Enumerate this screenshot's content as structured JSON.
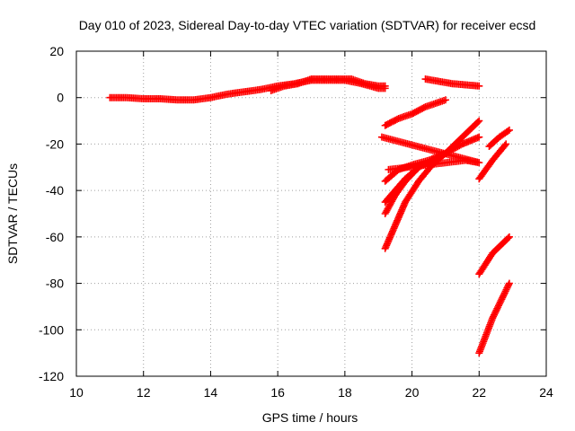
{
  "chart_data": {
    "type": "scatter",
    "title": "Day 010 of 2023, Sidereal Day-to-day VTEC variation (SDTVAR) for receiver ecsd",
    "xlabel": "GPS time / hours",
    "ylabel": "SDTVAR / TECUs",
    "xlim": [
      10,
      24
    ],
    "ylim": [
      -120,
      20
    ],
    "xticks": [
      10,
      12,
      14,
      16,
      18,
      20,
      22,
      24
    ],
    "yticks": [
      20,
      0,
      -20,
      -40,
      -60,
      -80,
      -100,
      -120
    ],
    "grid": true,
    "legend": "none",
    "marker": "plus",
    "color": "#ff0000",
    "series": [
      {
        "x": [
          11.0,
          11.5,
          12.0,
          12.5,
          13.0,
          13.5,
          14.0,
          14.5,
          15.0,
          15.5,
          16.0,
          16.5,
          17.0,
          17.5,
          18.0,
          18.5,
          19.0,
          19.2
        ],
        "y": [
          0,
          0,
          -0.5,
          -0.5,
          -1,
          -1,
          0,
          1.5,
          2.5,
          3.5,
          5,
          6,
          7.5,
          7.5,
          7.5,
          6,
          4,
          4
        ]
      },
      {
        "x": [
          15.8,
          16.2,
          16.6,
          17.0,
          17.4,
          17.8,
          18.2,
          18.6,
          19.0,
          19.2
        ],
        "y": [
          3,
          5,
          6,
          8,
          8,
          8,
          8,
          6,
          5,
          5
        ]
      },
      {
        "x": [
          20.4,
          20.8,
          21.2,
          21.6,
          22.0
        ],
        "y": [
          8,
          7,
          6,
          5.5,
          5
        ]
      },
      {
        "x": [
          19.2,
          19.6,
          20.0,
          20.4,
          20.8,
          21.0
        ],
        "y": [
          -12,
          -9,
          -7,
          -4,
          -2,
          -1
        ]
      },
      {
        "x": [
          19.2,
          19.6,
          20.0,
          20.5,
          21.0,
          21.5,
          22.0
        ],
        "y": [
          -36,
          -31,
          -29,
          -27,
          -24,
          -20,
          -17
        ]
      },
      {
        "x": [
          19.2,
          19.5,
          19.8,
          20.2,
          20.6,
          21.0,
          21.5,
          22.0
        ],
        "y": [
          -50,
          -42,
          -36,
          -30,
          -27,
          -24,
          -17,
          -10
        ]
      },
      {
        "x": [
          19.2,
          19.5,
          19.8,
          20.2,
          20.6,
          21.0
        ],
        "y": [
          -65,
          -55,
          -45,
          -36,
          -29,
          -24
        ]
      },
      {
        "x": [
          19.2,
          19.5,
          19.8,
          20.2
        ],
        "y": [
          -45,
          -40,
          -35,
          -30
        ]
      },
      {
        "x": [
          22.0,
          22.4,
          22.8
        ],
        "y": [
          -35,
          -27,
          -20
        ]
      },
      {
        "x": [
          22.3,
          22.6,
          22.9
        ],
        "y": [
          -21,
          -17,
          -14
        ]
      },
      {
        "x": [
          22.0,
          22.4,
          22.9
        ],
        "y": [
          -76,
          -67,
          -60
        ]
      },
      {
        "x": [
          22.0,
          22.4,
          22.9
        ],
        "y": [
          -110,
          -95,
          -80
        ]
      },
      {
        "x": [
          19.1,
          22.0,
          21.6,
          19.3
        ],
        "y": [
          -17,
          -28,
          -27,
          -31
        ]
      }
    ]
  }
}
